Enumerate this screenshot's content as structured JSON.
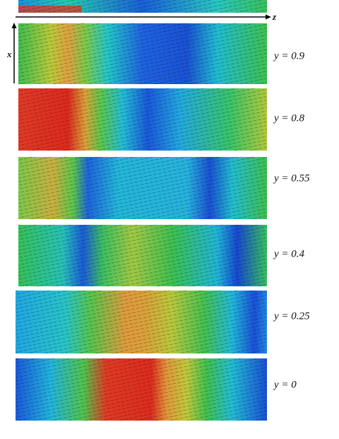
{
  "axes": {
    "horizontal": "z",
    "vertical": "x"
  },
  "panels": [
    {
      "label": "y = 0.9"
    },
    {
      "label": "y = 0.8"
    },
    {
      "label": "y = 0.55"
    },
    {
      "label": "y = 0.4"
    },
    {
      "label": "y = 0.25"
    },
    {
      "label": "y = 0"
    }
  ]
}
